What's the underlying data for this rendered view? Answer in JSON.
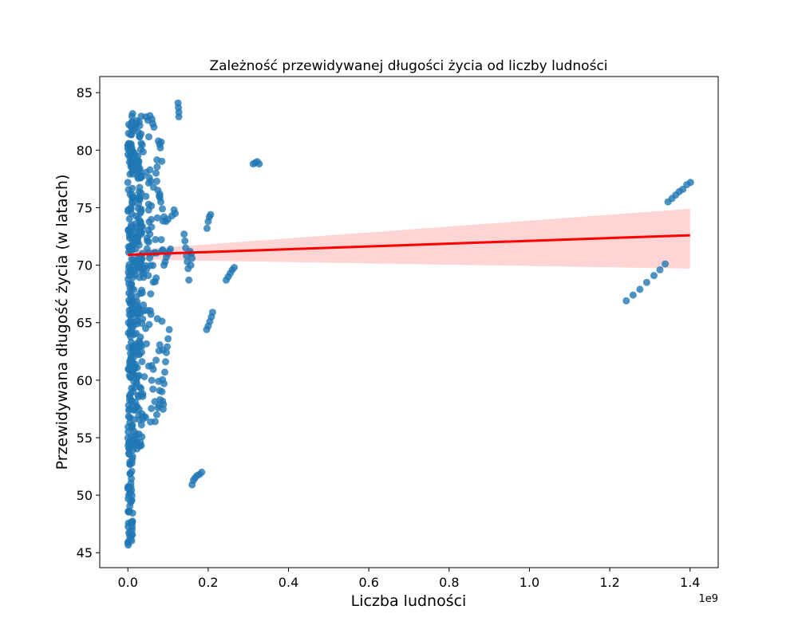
{
  "chart_data": {
    "type": "scatter",
    "title": "Zależność przewidywanej długości życia od liczby ludności",
    "xlabel": "Liczba ludności",
    "ylabel": "Przewidywana długość życia (w latach)",
    "x_offset_label": "1e9",
    "xlim": [
      -0.07,
      1.47
    ],
    "ylim": [
      43.7,
      86.4
    ],
    "x_ticks": [
      0.0,
      0.2,
      0.4,
      0.6,
      0.8,
      1.0,
      1.2,
      1.4
    ],
    "x_tick_labels": [
      "0.0",
      "0.2",
      "0.4",
      "0.6",
      "0.8",
      "1.0",
      "1.2",
      "1.4"
    ],
    "y_ticks": [
      45,
      50,
      55,
      60,
      65,
      70,
      75,
      80,
      85
    ],
    "y_tick_labels": [
      "45",
      "50",
      "55",
      "60",
      "65",
      "70",
      "75",
      "80",
      "85"
    ],
    "grid": false,
    "colors": {
      "points": "#1f77b4",
      "regression_line": "#ff0000",
      "confidence_band": "#ffcccc"
    },
    "regression": {
      "x": [
        0.0,
        1.4
      ],
      "y": [
        70.9,
        72.6
      ],
      "ci_lower": [
        70.5,
        69.7
      ],
      "ci_upper": [
        71.3,
        74.9
      ]
    },
    "cluster_bands": [
      {
        "x0": 0.0,
        "x1": 0.012,
        "ymin": 45.6,
        "ymax": 83.4,
        "n": 220
      },
      {
        "x0": 0.012,
        "x1": 0.035,
        "ymin": 54.0,
        "ymax": 83.0,
        "n": 180
      },
      {
        "x0": 0.035,
        "x1": 0.06,
        "ymin": 56.0,
        "ymax": 82.0,
        "n": 60
      },
      {
        "x0": 0.06,
        "x1": 0.09,
        "ymin": 57.0,
        "ymax": 80.0,
        "n": 35
      }
    ],
    "points": [
      [
        0.125,
        84.1
      ],
      [
        0.126,
        83.7
      ],
      [
        0.127,
        83.3
      ],
      [
        0.127,
        82.9
      ],
      [
        0.045,
        82.9
      ],
      [
        0.05,
        82.6
      ],
      [
        0.055,
        83.0
      ],
      [
        0.06,
        82.7
      ],
      [
        0.062,
        82.3
      ],
      [
        0.065,
        82.0
      ],
      [
        0.076,
        80.8
      ],
      [
        0.079,
        80.5
      ],
      [
        0.081,
        80.2
      ],
      [
        0.083,
        80.7
      ],
      [
        0.312,
        78.8
      ],
      [
        0.317,
        78.9
      ],
      [
        0.322,
        79.0
      ],
      [
        0.327,
        78.8
      ],
      [
        0.07,
        78.0
      ],
      [
        0.072,
        77.3
      ],
      [
        0.075,
        76.5
      ],
      [
        0.078,
        76.0
      ],
      [
        0.082,
        75.5
      ],
      [
        0.086,
        74.9
      ],
      [
        0.09,
        74.2
      ],
      [
        0.095,
        73.8
      ],
      [
        0.1,
        74.0
      ],
      [
        0.11,
        74.3
      ],
      [
        0.115,
        74.8
      ],
      [
        0.118,
        74.5
      ],
      [
        0.197,
        73.2
      ],
      [
        0.2,
        73.8
      ],
      [
        0.203,
        74.2
      ],
      [
        0.206,
        74.4
      ],
      [
        0.14,
        72.7
      ],
      [
        0.142,
        72.1
      ],
      [
        0.144,
        71.5
      ],
      [
        0.146,
        70.8
      ],
      [
        0.148,
        70.3
      ],
      [
        0.15,
        69.7
      ],
      [
        0.152,
        68.7
      ],
      [
        0.155,
        71.2
      ],
      [
        0.158,
        71.0
      ],
      [
        0.16,
        70.6
      ],
      [
        0.157,
        70.0
      ],
      [
        0.09,
        70.0
      ],
      [
        0.093,
        70.3
      ],
      [
        0.096,
        70.7
      ],
      [
        0.1,
        71.0
      ],
      [
        0.103,
        71.2
      ],
      [
        0.106,
        71.4
      ],
      [
        0.245,
        68.7
      ],
      [
        0.25,
        69.0
      ],
      [
        0.255,
        69.3
      ],
      [
        0.26,
        69.6
      ],
      [
        0.265,
        69.8
      ],
      [
        0.103,
        64.4
      ],
      [
        0.1,
        63.6
      ],
      [
        0.098,
        62.9
      ],
      [
        0.096,
        62.4
      ],
      [
        0.094,
        61.6
      ],
      [
        0.092,
        60.7
      ],
      [
        0.09,
        59.7
      ],
      [
        0.085,
        59.0
      ],
      [
        0.08,
        58.3
      ],
      [
        0.075,
        57.6
      ],
      [
        0.072,
        57.0
      ],
      [
        0.068,
        56.4
      ],
      [
        0.196,
        64.4
      ],
      [
        0.2,
        64.7
      ],
      [
        0.204,
        65.1
      ],
      [
        0.208,
        65.5
      ],
      [
        0.211,
        65.9
      ],
      [
        0.16,
        50.9
      ],
      [
        0.163,
        51.3
      ],
      [
        0.167,
        51.5
      ],
      [
        0.172,
        51.7
      ],
      [
        0.178,
        51.8
      ],
      [
        0.184,
        52.0
      ],
      [
        1.241,
        66.9
      ],
      [
        1.258,
        67.4
      ],
      [
        1.275,
        67.9
      ],
      [
        1.292,
        68.5
      ],
      [
        1.31,
        69.1
      ],
      [
        1.325,
        69.6
      ],
      [
        1.338,
        70.1
      ],
      [
        1.345,
        75.5
      ],
      [
        1.355,
        75.8
      ],
      [
        1.364,
        76.1
      ],
      [
        1.373,
        76.4
      ],
      [
        1.382,
        76.6
      ],
      [
        1.392,
        77.0
      ],
      [
        1.401,
        77.2
      ]
    ]
  }
}
